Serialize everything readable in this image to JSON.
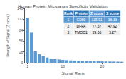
{
  "chart_data": {
    "type": "bar",
    "title": "Human Protein Microarray Specificity Validation",
    "xlabel": "Signal Rank",
    "ylabel": "Strength of Signal (Z score)",
    "x": [
      1,
      2,
      3,
      4,
      5,
      6,
      7,
      8,
      9,
      10,
      11,
      12,
      13,
      14,
      15,
      16,
      17,
      18,
      19,
      20,
      21,
      22,
      23,
      24,
      25
    ],
    "values": [
      115.91,
      77.57,
      29.66,
      22.0,
      17.0,
      13.5,
      11.0,
      9.5,
      8.5,
      7.5,
      6.8,
      6.2,
      5.7,
      5.3,
      4.9,
      4.6,
      4.3,
      4.1,
      3.9,
      3.7,
      3.5,
      3.3,
      3.1,
      2.9,
      2.7
    ],
    "color": "#5b9bd5",
    "xlim": [
      0.2,
      25
    ],
    "xticks": [
      1,
      10,
      20
    ],
    "ylim": [
      0,
      140
    ],
    "yticks": [
      0,
      28,
      56,
      84,
      112,
      140
    ],
    "grid": false,
    "table": {
      "headers": [
        "Rank",
        "Protein",
        "Z score",
        "S score"
      ],
      "rows": [
        [
          "1",
          "CD80",
          "115.91",
          "38.33"
        ],
        [
          "2",
          "DFFA",
          "77.57",
          "47.92"
        ],
        [
          "3",
          "TMOO1",
          "29.66",
          "5.27"
        ]
      ],
      "header_colors": [
        "#2e75b6",
        "#2e75b6",
        "#5b9bd5",
        "#2e75b6"
      ],
      "highlight_color": "#5b9bd5",
      "row_color": "#f0f0f0"
    }
  }
}
